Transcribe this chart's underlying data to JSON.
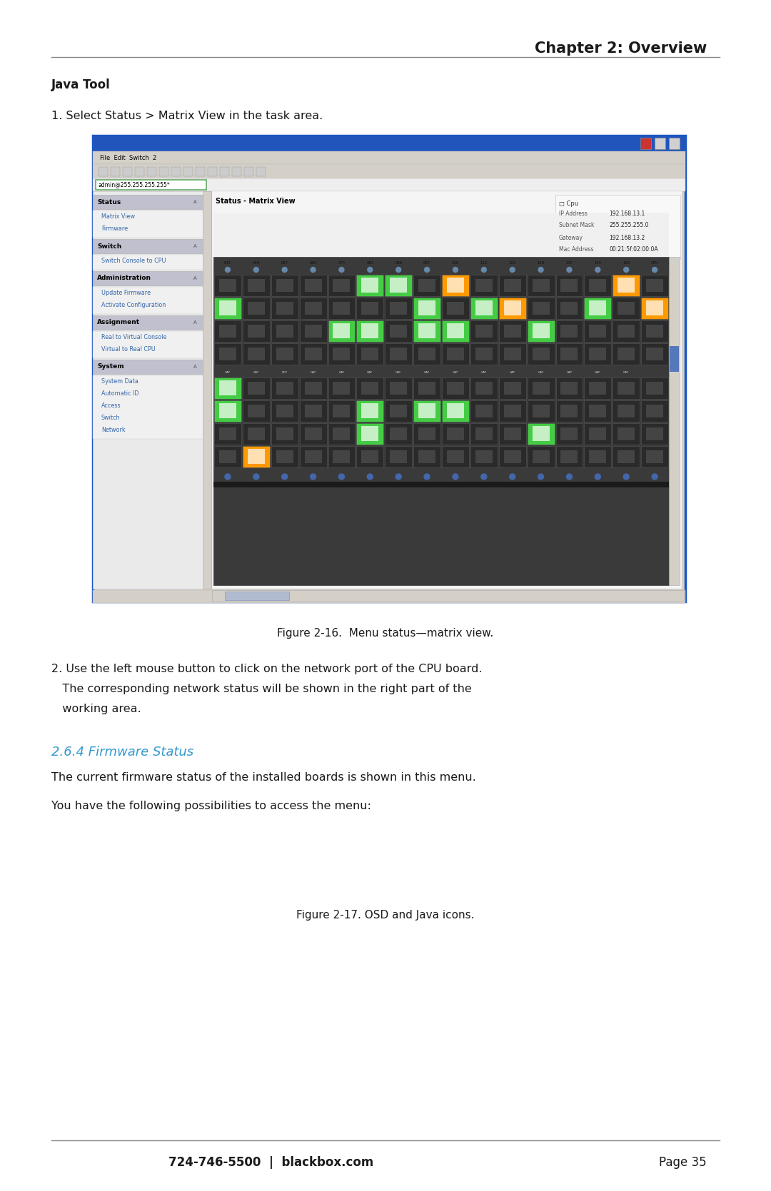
{
  "page_bg": "#ffffff",
  "chapter_header": "Chapter 2: Overview",
  "header_line_color": "#888888",
  "section_title": "Java Tool",
  "step1_text": "1. Select Status > Matrix View in the task area.",
  "figure_caption1": "Figure 2-16.  Menu status—matrix view.",
  "step2_line1": "2. Use the left mouse button to click on the network port of the CPU board.",
  "step2_line2": "   The corresponding network status will be shown in the right part of the",
  "step2_line3": "   working area.",
  "section_header_color": "#3399cc",
  "section_header_text": "2.6.4 Firmware Status",
  "para1_text": "The current firmware status of the installed boards is shown in this menu.",
  "para2_text": "You have the following possibilities to access the menu:",
  "figure_caption2": "Figure 2-17. OSD and Java icons.",
  "footer_line_color": "#888888",
  "footer_text": "724-746-5500  |  blackbox.com",
  "footer_page": "Page 35",
  "font_color": "#1a1a1a",
  "font_size_chapter": 15,
  "font_size_section_bold": 12,
  "font_size_body": 11.5,
  "font_size_caption": 11,
  "font_size_footer": 12,
  "col_labels": [
    "041",
    "049",
    "057",
    "065",
    "073",
    "081",
    "089",
    "097",
    "105",
    "113",
    "121",
    "129",
    "137",
    "145",
    "153",
    "CPU"
  ],
  "info_items": [
    [
      "IP Address",
      "192.168.13.1"
    ],
    [
      "Subnet Mask",
      "255.255.255.0"
    ],
    [
      "Gateway",
      "192.168.13.2"
    ],
    [
      "Mac Address",
      "00:21:5f:02:00:0A"
    ]
  ],
  "left_panel_sections": [
    {
      "title": "Status",
      "items": [
        "Matrix View",
        "Firmware"
      ]
    },
    {
      "title": "Switch",
      "items": [
        "Switch Console to CPU"
      ]
    },
    {
      "title": "Administration",
      "items": [
        "Update Firmware",
        "Activate Configuration"
      ]
    },
    {
      "title": "Assignment",
      "items": [
        "Real to Virtual Console",
        "Virtual to Real CPU"
      ]
    },
    {
      "title": "System",
      "items": [
        "System Data",
        "Automatic ID",
        "Access",
        "Switch",
        "Network"
      ]
    }
  ]
}
